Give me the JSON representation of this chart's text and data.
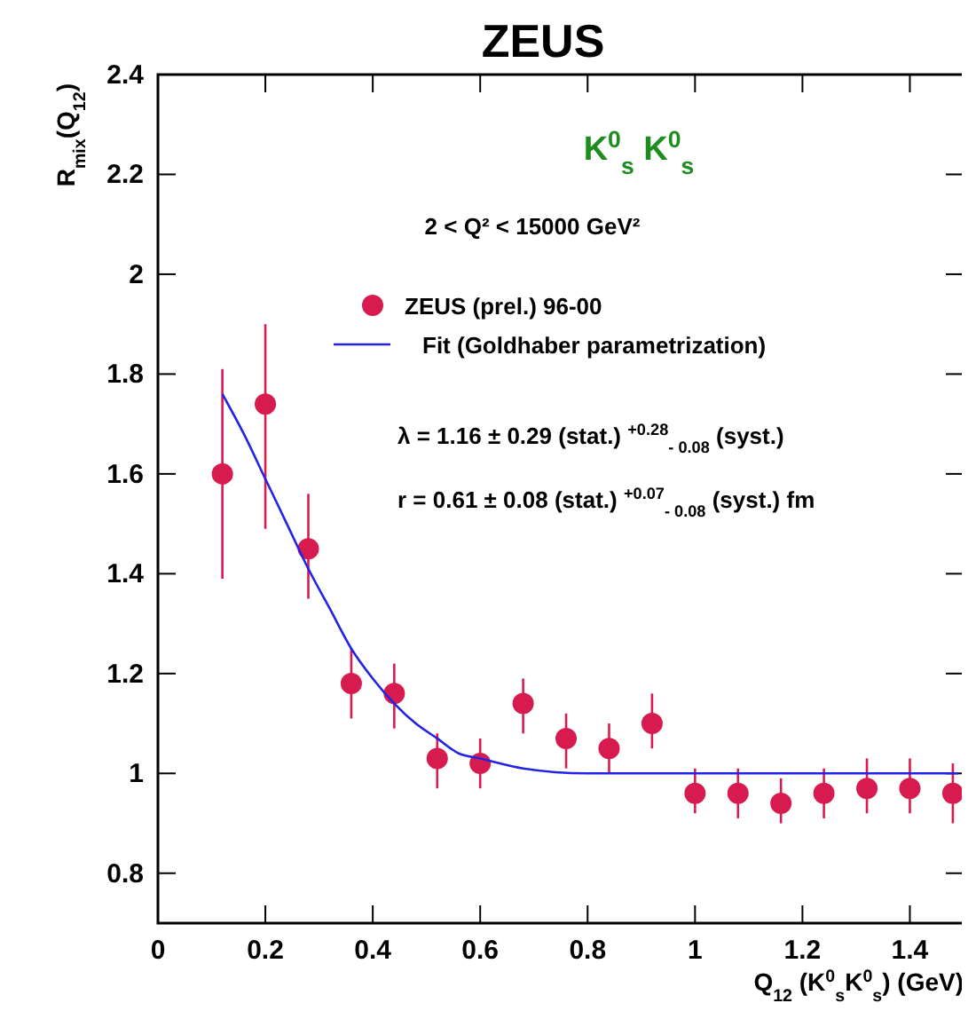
{
  "chart_data": {
    "type": "scatter",
    "title": "ZEUS",
    "xlabel": "Q$_{12}$ (K$^{0}$$_{s}$K$^{0}$$_{s}$) (GeV)",
    "ylabel": "R$_{mix}$(Q$_{12}$)",
    "xlim": [
      0,
      1.5
    ],
    "xticks": [
      0,
      0.2,
      0.4,
      0.6,
      0.8,
      1,
      1.2,
      1.4
    ],
    "ylim": [
      0.7,
      2.4
    ],
    "yticks": [
      0.8,
      1,
      1.2,
      1.4,
      1.6,
      1.8,
      2,
      2.2,
      2.4
    ],
    "grid": false,
    "legend": "top",
    "marker": "circle",
    "annotations": [
      "K$^{0}$$_{s}$ K$^{0}$$_{s}$",
      "2 < Q² < 15000  GeV²",
      "λ = 1.16  ± 0.29 (stat.) $^{+0.28}$$_{- 0.08}$ (syst.)",
      "r = 0.61  ± 0.08 (stat.) $^{+0.07}$$_{- 0.08}$ (syst.)  fm"
    ],
    "series": [
      {
        "name": "ZEUS (prel.) 96-00",
        "color": "#d81b4f",
        "x": [
          0.12,
          0.2,
          0.28,
          0.36,
          0.44,
          0.52,
          0.6,
          0.68,
          0.76,
          0.84,
          0.92,
          1.0,
          1.08,
          1.16,
          1.24,
          1.32,
          1.4,
          1.48
        ],
        "values": [
          1.6,
          1.74,
          1.45,
          1.18,
          1.16,
          1.03,
          1.02,
          1.14,
          1.07,
          1.05,
          1.1,
          0.96,
          0.96,
          0.94,
          0.96,
          0.97,
          0.97,
          0.96
        ],
        "errors": [
          [
            1.39,
            1.81
          ],
          [
            1.49,
            1.9
          ],
          [
            1.35,
            1.56
          ],
          [
            1.11,
            1.25
          ],
          [
            1.09,
            1.22
          ],
          [
            0.97,
            1.08
          ],
          [
            0.97,
            1.07
          ],
          [
            1.08,
            1.19
          ],
          [
            1.01,
            1.12
          ],
          [
            1.0,
            1.1
          ],
          [
            1.05,
            1.16
          ],
          [
            0.92,
            1.01
          ],
          [
            0.91,
            1.01
          ],
          [
            0.9,
            0.99
          ],
          [
            0.91,
            1.01
          ],
          [
            0.92,
            1.03
          ],
          [
            0.92,
            1.03
          ],
          [
            0.9,
            1.02
          ]
        ]
      },
      {
        "name": "Fit (Goldhaber parametrization)",
        "type": "line",
        "color": "#2323e6",
        "line_style": "solid",
        "marker": "none",
        "x": [
          0.12,
          0.16,
          0.2,
          0.24,
          0.28,
          0.32,
          0.36,
          0.4,
          0.44,
          0.48,
          0.52,
          0.56,
          0.6,
          0.68,
          0.8,
          1.0,
          1.2,
          1.49
        ],
        "values": [
          1.76,
          1.68,
          1.59,
          1.5,
          1.41,
          1.33,
          1.25,
          1.19,
          1.14,
          1.1,
          1.07,
          1.04,
          1.03,
          1.01,
          1.0,
          1.0,
          1.0,
          1.0
        ]
      }
    ]
  }
}
